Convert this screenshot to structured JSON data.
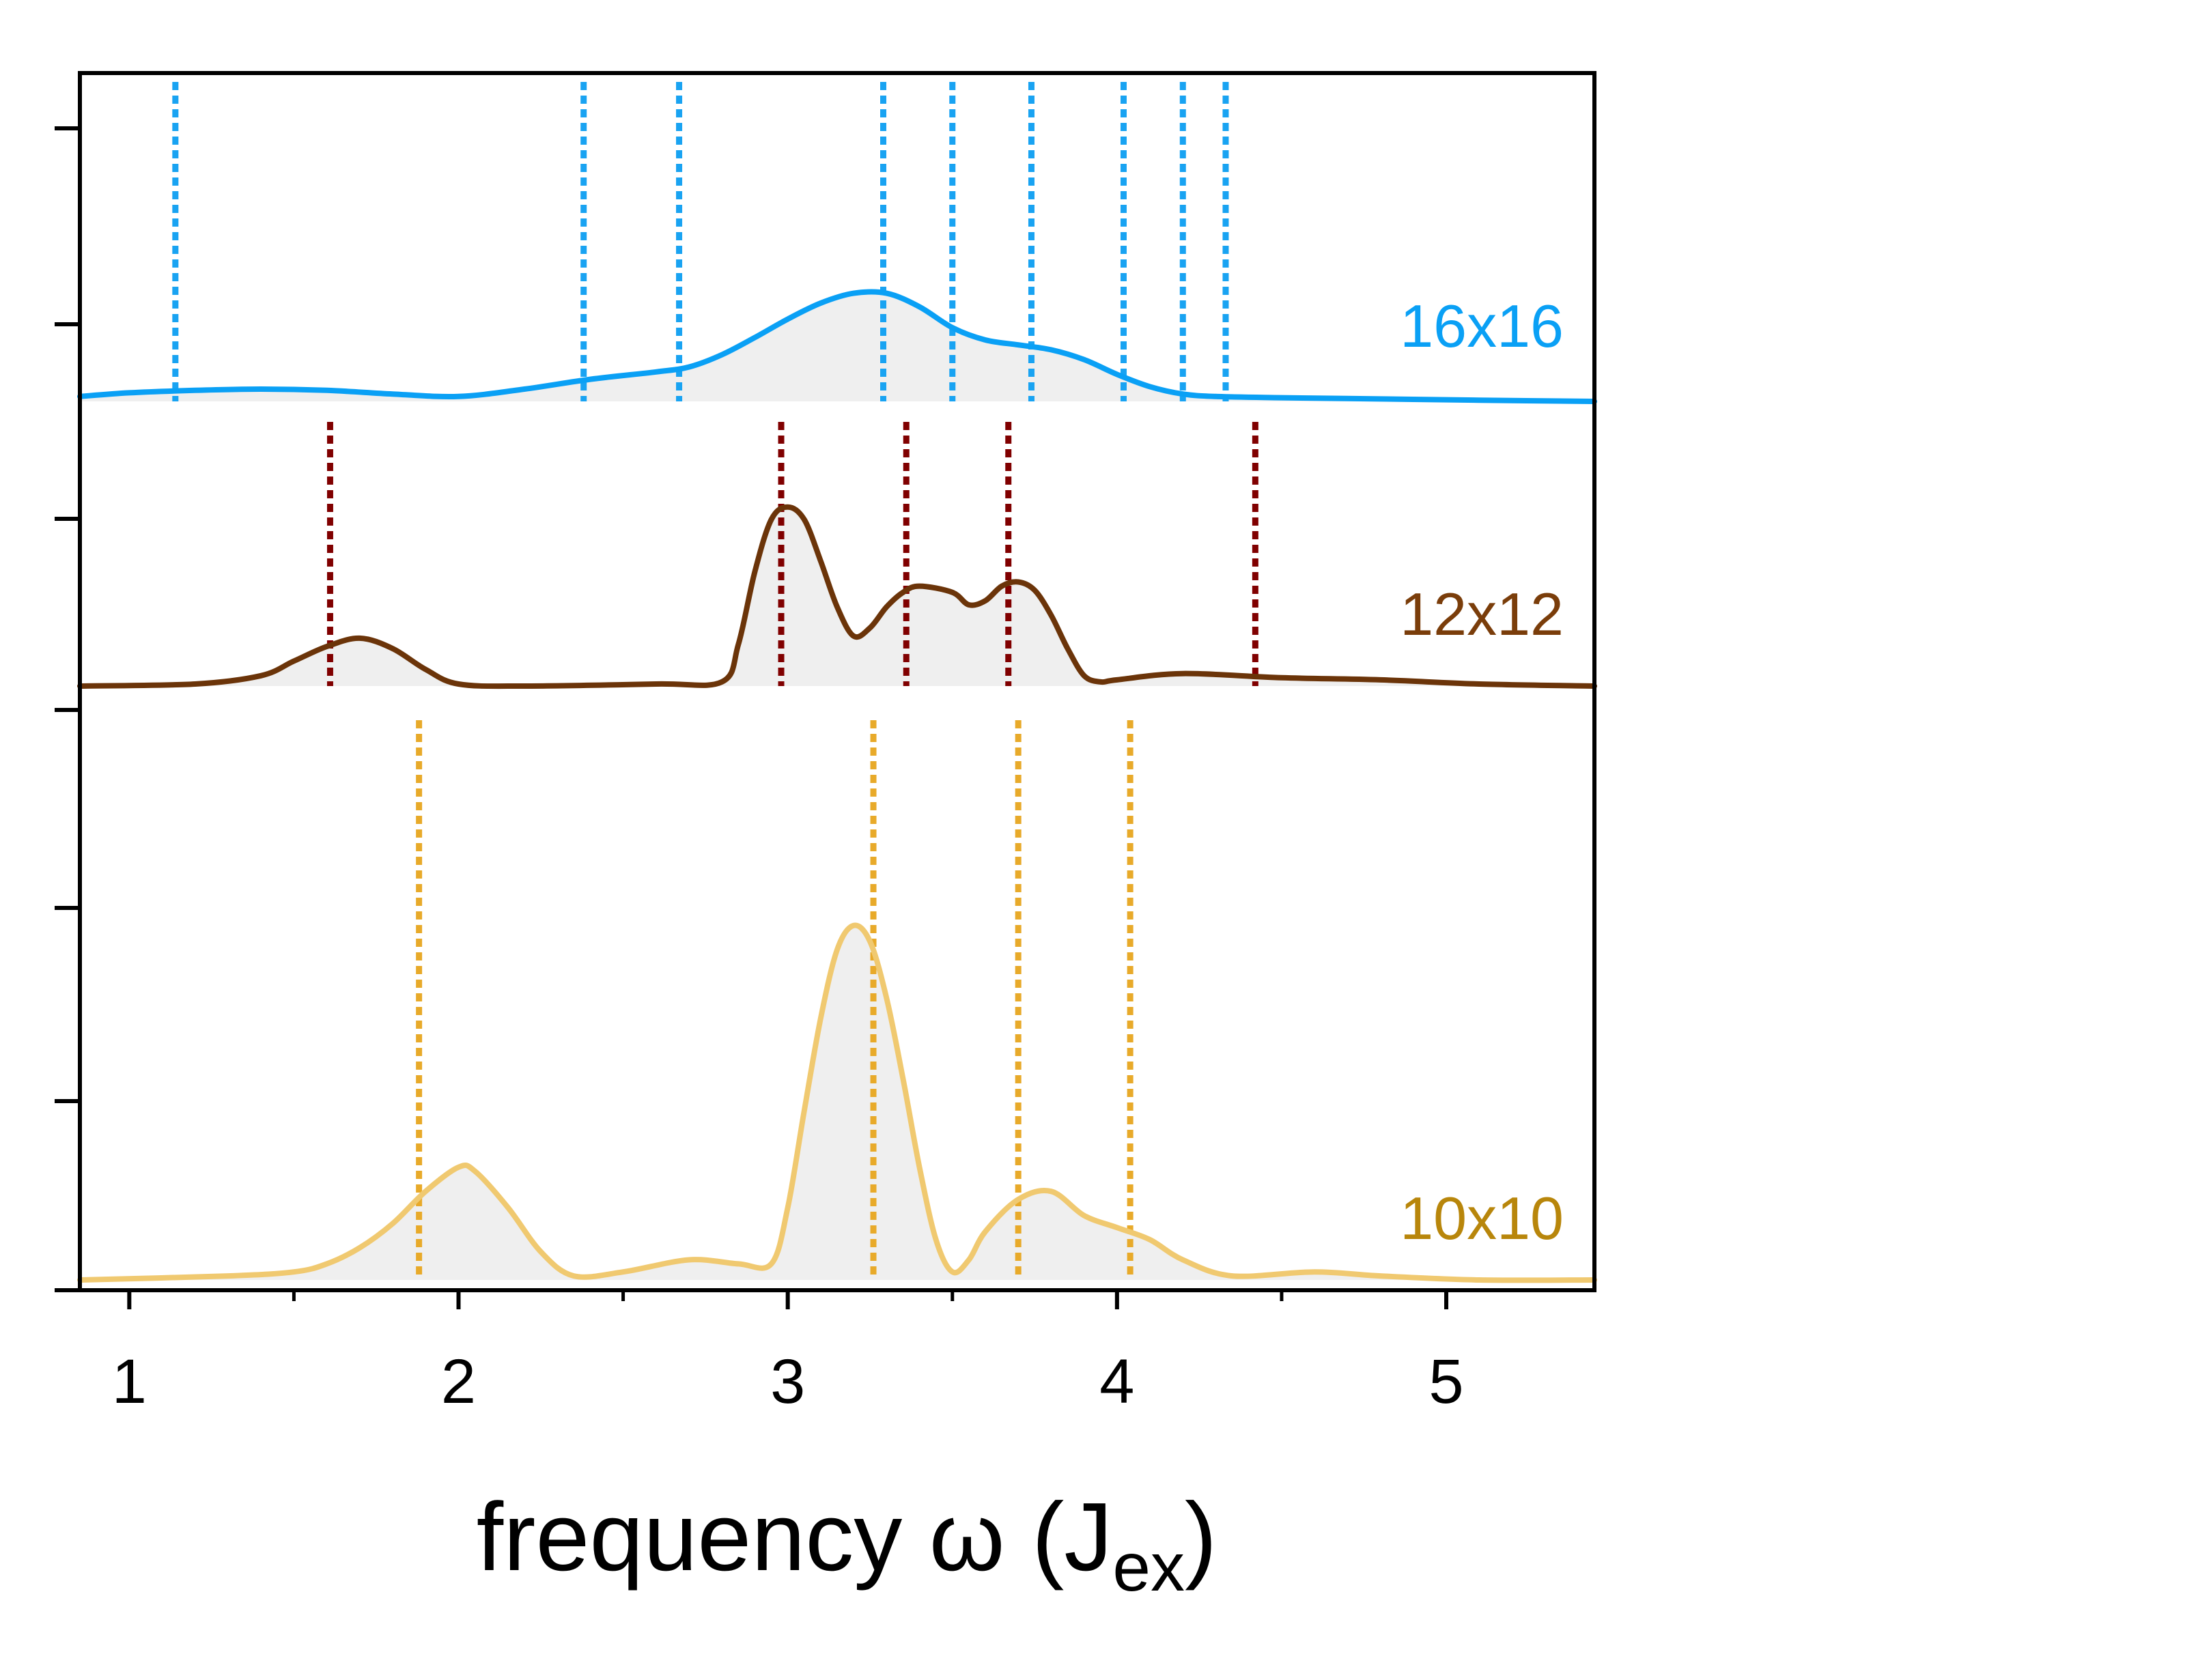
{
  "chart_data": {
    "type": "line",
    "xlabel_main": "frequency ω (J",
    "xlabel_sub": "ex",
    "xlabel_close": ")",
    "xlim": [
      0.85,
      5.45
    ],
    "xticks": [
      1,
      2,
      3,
      4,
      5
    ],
    "xtick_labels": [
      "1",
      "2",
      "3",
      "4",
      "5"
    ],
    "grid": false,
    "fill_color": "#efefef",
    "panels": [
      {
        "label": "16x16",
        "color": "#0aa0f5",
        "line_color": "#0aa0f5",
        "mode_color": "#19a3f2",
        "modes": [
          1.14,
          2.38,
          2.67,
          3.29,
          3.5,
          3.74,
          4.02,
          4.2,
          4.33
        ],
        "x": [
          0.85,
          1.0,
          1.2,
          1.4,
          1.6,
          1.8,
          2.0,
          2.2,
          2.4,
          2.6,
          2.7,
          2.8,
          2.9,
          3.0,
          3.1,
          3.2,
          3.3,
          3.4,
          3.5,
          3.6,
          3.7,
          3.8,
          3.9,
          4.0,
          4.1,
          4.2,
          4.3,
          4.5,
          4.8,
          5.1,
          5.45
        ],
        "y": [
          0.04,
          0.07,
          0.09,
          0.1,
          0.09,
          0.06,
          0.04,
          0.1,
          0.18,
          0.24,
          0.28,
          0.38,
          0.52,
          0.67,
          0.8,
          0.88,
          0.88,
          0.77,
          0.6,
          0.5,
          0.46,
          0.42,
          0.34,
          0.22,
          0.12,
          0.06,
          0.04,
          0.03,
          0.02,
          0.01,
          0.0
        ]
      },
      {
        "label": "12x12",
        "color": "#7a3d0a",
        "line_color": "#6b3409",
        "mode_color": "#800000",
        "modes": [
          1.61,
          2.98,
          3.36,
          3.67,
          4.42
        ],
        "x": [
          0.85,
          1.2,
          1.4,
          1.5,
          1.6,
          1.7,
          1.8,
          1.9,
          2.0,
          2.2,
          2.6,
          2.8,
          2.85,
          2.9,
          2.95,
          3.0,
          3.05,
          3.1,
          3.15,
          3.2,
          3.25,
          3.3,
          3.35,
          3.4,
          3.5,
          3.55,
          3.6,
          3.65,
          3.7,
          3.75,
          3.8,
          3.85,
          3.9,
          3.95,
          4.0,
          4.2,
          4.5,
          4.8,
          5.1,
          5.45
        ],
        "y": [
          0.0,
          0.01,
          0.05,
          0.12,
          0.19,
          0.23,
          0.18,
          0.08,
          0.01,
          0.0,
          0.01,
          0.02,
          0.2,
          0.55,
          0.8,
          0.86,
          0.8,
          0.6,
          0.38,
          0.24,
          0.28,
          0.38,
          0.45,
          0.48,
          0.45,
          0.39,
          0.41,
          0.48,
          0.5,
          0.46,
          0.34,
          0.18,
          0.05,
          0.02,
          0.03,
          0.06,
          0.04,
          0.03,
          0.01,
          0.0
        ]
      },
      {
        "label": "10x10",
        "color": "#b8860b",
        "line_color": "#f0c970",
        "mode_color": "#e8aa2a",
        "modes": [
          1.88,
          3.26,
          3.7,
          4.04
        ],
        "x": [
          0.85,
          1.3,
          1.5,
          1.6,
          1.7,
          1.8,
          1.9,
          2.0,
          2.05,
          2.15,
          2.25,
          2.35,
          2.5,
          2.7,
          2.85,
          2.95,
          3.0,
          3.05,
          3.1,
          3.15,
          3.2,
          3.25,
          3.3,
          3.35,
          3.4,
          3.45,
          3.5,
          3.55,
          3.6,
          3.7,
          3.8,
          3.9,
          4.0,
          4.1,
          4.2,
          4.35,
          4.6,
          4.8,
          5.1,
          5.45
        ],
        "y": [
          0.0,
          0.01,
          0.02,
          0.04,
          0.08,
          0.14,
          0.22,
          0.28,
          0.27,
          0.18,
          0.07,
          0.01,
          0.02,
          0.05,
          0.04,
          0.04,
          0.18,
          0.42,
          0.65,
          0.82,
          0.88,
          0.84,
          0.7,
          0.5,
          0.28,
          0.1,
          0.02,
          0.05,
          0.12,
          0.2,
          0.22,
          0.16,
          0.13,
          0.1,
          0.05,
          0.01,
          0.02,
          0.01,
          0.0,
          0.0
        ]
      }
    ]
  }
}
